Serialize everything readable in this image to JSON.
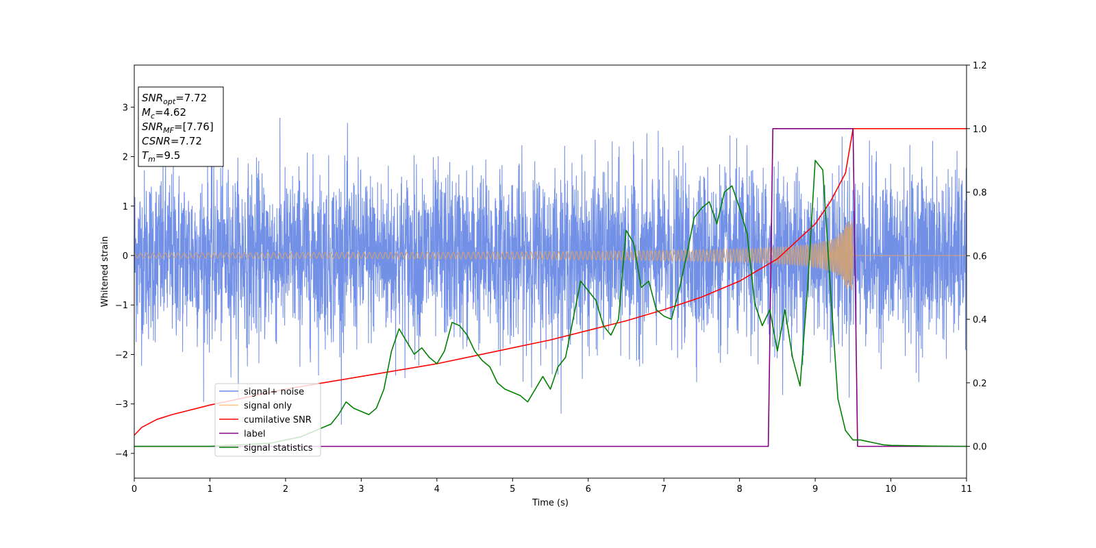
{
  "chart_data": {
    "type": "line",
    "xlabel": "Time (s)",
    "ylabel": "Whitened strain",
    "xlim": [
      0,
      11
    ],
    "ylim": [
      -4.5,
      3.85
    ],
    "ylim_right": [
      -0.1,
      1.2
    ],
    "x_ticks": [
      "0",
      "1",
      "2",
      "3",
      "4",
      "5",
      "6",
      "7",
      "8",
      "9",
      "10",
      "11"
    ],
    "y_ticks_left": [
      "3",
      "2",
      "1",
      "0",
      "−1",
      "−2",
      "−3",
      "−4"
    ],
    "y_ticks_right": [
      "1.2",
      "1.0",
      "0.8",
      "0.6",
      "0.4",
      "0.2",
      "0.0"
    ],
    "grid": false,
    "legend_position": "lower-left",
    "legend": [
      {
        "label": "signal+ noise",
        "color": "#6b8ae6"
      },
      {
        "label": "signal only",
        "color": "#ffc080"
      },
      {
        "label": "cumilative SNR",
        "color": "#ff0000"
      },
      {
        "label": "label",
        "color": "#800080"
      },
      {
        "label": "signal statistics",
        "color": "#008000"
      }
    ],
    "info_box": [
      {
        "main": "SNR",
        "sub": "opt",
        "value": "=7.72"
      },
      {
        "main": "M",
        "sub": "c",
        "value": "=4.62"
      },
      {
        "main": "SNR",
        "sub": "MF",
        "value": "=[7.76]"
      },
      {
        "main": "CSNR",
        "sub": "",
        "value": "=7.72"
      },
      {
        "main": "T",
        "sub": "m",
        "value": "=9.5"
      }
    ],
    "series": [
      {
        "name": "signal+ noise",
        "axis": "left",
        "color": "#6b8ae6",
        "description_kind": "noise",
        "amplitude_typical": 1.4,
        "amplitude_max": 3.4,
        "x_range": [
          0,
          11
        ]
      },
      {
        "name": "signal only",
        "axis": "left",
        "color": "#d4a373",
        "description_kind": "chirp",
        "start_amplitude": 0.05,
        "peak_amplitude": 0.7,
        "merger_time": 9.5,
        "x_range": [
          0,
          11
        ]
      },
      {
        "name": "cumilative SNR",
        "axis": "right",
        "color": "#ff0000",
        "x": [
          0,
          0.1,
          0.3,
          0.5,
          1,
          1.5,
          2,
          2.5,
          3,
          3.5,
          4,
          4.5,
          5,
          5.5,
          6,
          6.5,
          7,
          7.5,
          8,
          8.5,
          9,
          9.2,
          9.4,
          9.5,
          11
        ],
        "y": [
          0.035,
          0.06,
          0.085,
          0.1,
          0.13,
          0.155,
          0.18,
          0.2,
          0.22,
          0.24,
          0.26,
          0.285,
          0.31,
          0.335,
          0.365,
          0.395,
          0.43,
          0.47,
          0.52,
          0.59,
          0.7,
          0.77,
          0.86,
          1.0,
          1.0
        ]
      },
      {
        "name": "label",
        "axis": "right",
        "color": "#800080",
        "x": [
          0,
          8.38,
          8.44,
          9.5,
          9.56,
          11
        ],
        "y": [
          0,
          0,
          1,
          1,
          0,
          0
        ]
      },
      {
        "name": "signal statistics",
        "axis": "right",
        "color": "#008000",
        "x": [
          0,
          1,
          1.4,
          1.8,
          2.0,
          2.2,
          2.4,
          2.6,
          2.7,
          2.8,
          2.9,
          3.0,
          3.1,
          3.2,
          3.3,
          3.4,
          3.5,
          3.6,
          3.7,
          3.8,
          3.9,
          4.0,
          4.1,
          4.2,
          4.3,
          4.4,
          4.5,
          4.6,
          4.7,
          4.8,
          4.9,
          5.0,
          5.1,
          5.2,
          5.3,
          5.4,
          5.5,
          5.6,
          5.7,
          5.8,
          5.9,
          6.0,
          6.1,
          6.2,
          6.3,
          6.4,
          6.5,
          6.6,
          6.7,
          6.8,
          6.9,
          7.0,
          7.1,
          7.2,
          7.3,
          7.4,
          7.5,
          7.6,
          7.7,
          7.8,
          7.9,
          8.0,
          8.1,
          8.2,
          8.3,
          8.4,
          8.5,
          8.6,
          8.7,
          8.8,
          8.9,
          9.0,
          9.1,
          9.2,
          9.3,
          9.4,
          9.5,
          9.6,
          9.7,
          9.8,
          9.9,
          10.0,
          10.5,
          11.0
        ],
        "y": [
          0.0,
          0.0,
          0.005,
          0.01,
          0.02,
          0.03,
          0.05,
          0.07,
          0.1,
          0.14,
          0.12,
          0.11,
          0.1,
          0.12,
          0.18,
          0.3,
          0.37,
          0.33,
          0.29,
          0.31,
          0.28,
          0.26,
          0.3,
          0.39,
          0.38,
          0.35,
          0.3,
          0.27,
          0.25,
          0.2,
          0.18,
          0.17,
          0.16,
          0.14,
          0.18,
          0.22,
          0.18,
          0.25,
          0.28,
          0.4,
          0.52,
          0.49,
          0.46,
          0.38,
          0.35,
          0.4,
          0.68,
          0.64,
          0.5,
          0.52,
          0.43,
          0.41,
          0.4,
          0.49,
          0.6,
          0.72,
          0.75,
          0.77,
          0.7,
          0.8,
          0.82,
          0.75,
          0.67,
          0.45,
          0.38,
          0.43,
          0.3,
          0.43,
          0.28,
          0.19,
          0.5,
          0.9,
          0.87,
          0.5,
          0.15,
          0.05,
          0.02,
          0.02,
          0.015,
          0.01,
          0.005,
          0.003,
          0.001,
          0.0
        ]
      }
    ]
  }
}
